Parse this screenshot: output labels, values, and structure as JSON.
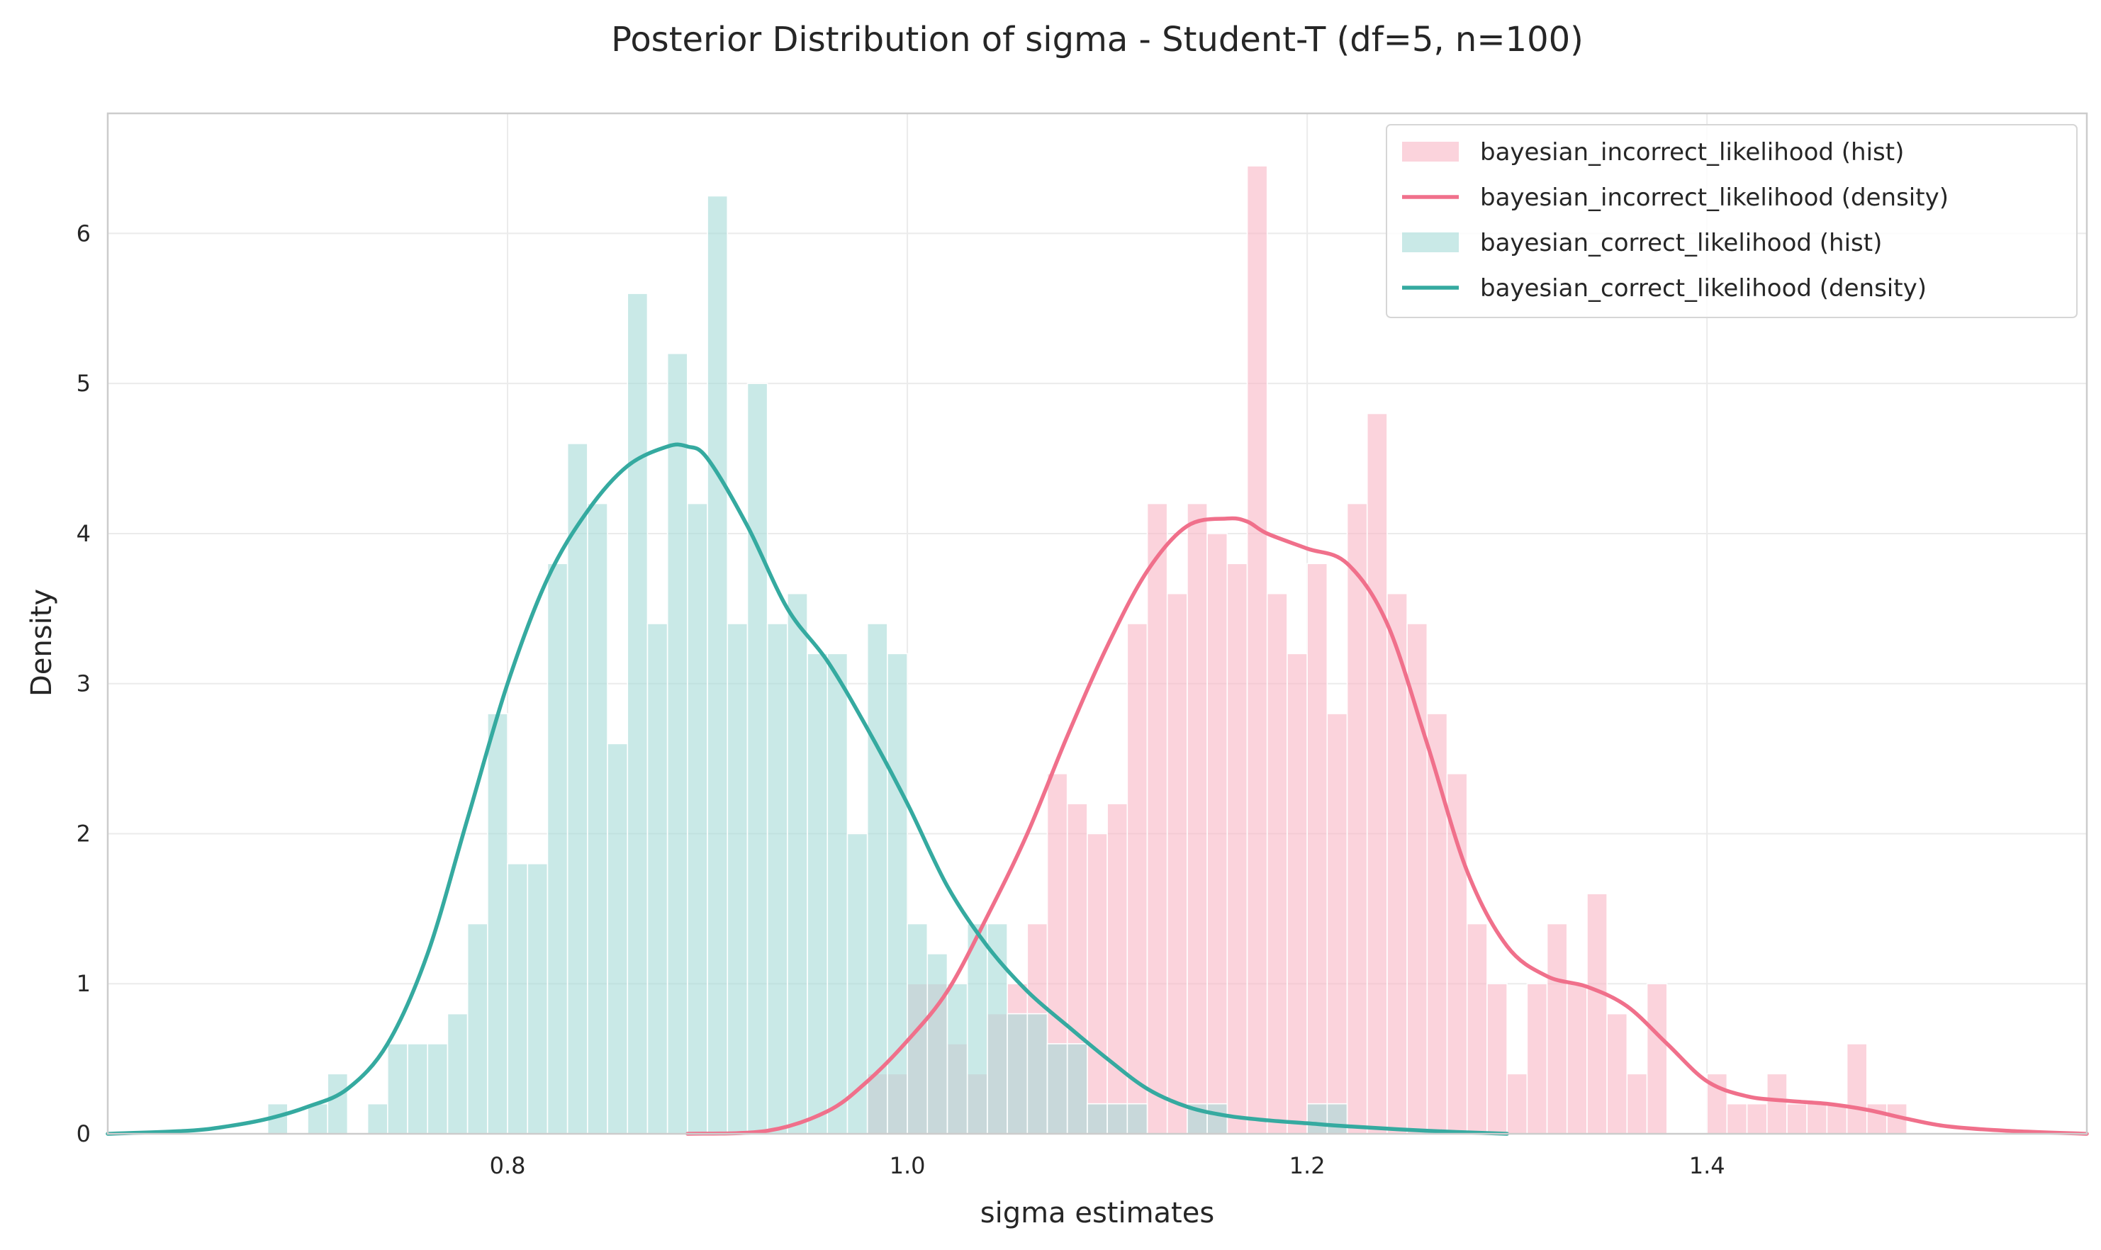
{
  "chart_data": {
    "type": "histogram",
    "title": "Posterior Distribution of sigma - Student-T (df=5, n=100)",
    "xlabel": "sigma estimates",
    "ylabel": "Density",
    "xlim": [
      0.6,
      1.59
    ],
    "ylim": [
      0,
      6.8
    ],
    "xticks": [
      0.8,
      1.0,
      1.2,
      1.4
    ],
    "xtick_labels": [
      "0.8",
      "1.0",
      "1.2",
      "1.4"
    ],
    "yticks": [
      0,
      1,
      2,
      3,
      4,
      5,
      6
    ],
    "ytick_labels": [
      "0",
      "1",
      "2",
      "3",
      "4",
      "5",
      "6"
    ],
    "grid": true,
    "legend_position": "top-right",
    "bin_width": 0.01,
    "series": [
      {
        "name": "bayesian_incorrect_likelihood (hist)",
        "kind": "hist",
        "color": "#f9b5c4",
        "bins": [
          [
            0.98,
            0.4
          ],
          [
            0.99,
            0.4
          ],
          [
            1.0,
            1.0
          ],
          [
            1.01,
            1.0
          ],
          [
            1.02,
            0.6
          ],
          [
            1.03,
            0.4
          ],
          [
            1.04,
            0.8
          ],
          [
            1.05,
            1.0
          ],
          [
            1.06,
            1.4
          ],
          [
            1.07,
            2.4
          ],
          [
            1.08,
            2.2
          ],
          [
            1.09,
            2.0
          ],
          [
            1.1,
            2.2
          ],
          [
            1.11,
            3.4
          ],
          [
            1.12,
            4.2
          ],
          [
            1.13,
            3.6
          ],
          [
            1.14,
            4.2
          ],
          [
            1.15,
            4.0
          ],
          [
            1.16,
            3.8
          ],
          [
            1.17,
            6.45
          ],
          [
            1.18,
            3.6
          ],
          [
            1.19,
            3.2
          ],
          [
            1.2,
            3.8
          ],
          [
            1.21,
            2.8
          ],
          [
            1.22,
            4.2
          ],
          [
            1.23,
            4.8
          ],
          [
            1.24,
            3.6
          ],
          [
            1.25,
            3.4
          ],
          [
            1.26,
            2.8
          ],
          [
            1.27,
            2.4
          ],
          [
            1.28,
            1.4
          ],
          [
            1.29,
            1.0
          ],
          [
            1.3,
            0.4
          ],
          [
            1.31,
            1.0
          ],
          [
            1.32,
            1.4
          ],
          [
            1.33,
            1.0
          ],
          [
            1.34,
            1.6
          ],
          [
            1.35,
            0.8
          ],
          [
            1.36,
            0.4
          ],
          [
            1.37,
            1.0
          ],
          [
            1.38,
            0.0
          ],
          [
            1.39,
            0.0
          ],
          [
            1.4,
            0.4
          ],
          [
            1.41,
            0.2
          ],
          [
            1.42,
            0.2
          ],
          [
            1.43,
            0.4
          ],
          [
            1.44,
            0.2
          ],
          [
            1.45,
            0.2
          ],
          [
            1.46,
            0.2
          ],
          [
            1.47,
            0.6
          ],
          [
            1.48,
            0.2
          ],
          [
            1.49,
            0.2
          ]
        ]
      },
      {
        "name": "bayesian_incorrect_likelihood (density)",
        "kind": "line",
        "color": "#f0708b",
        "x": [
          0.89,
          0.93,
          0.96,
          0.98,
          1.0,
          1.02,
          1.04,
          1.06,
          1.08,
          1.1,
          1.12,
          1.14,
          1.16,
          1.17,
          1.18,
          1.2,
          1.22,
          1.24,
          1.26,
          1.28,
          1.3,
          1.32,
          1.34,
          1.36,
          1.38,
          1.4,
          1.42,
          1.44,
          1.46,
          1.48,
          1.5,
          1.52,
          1.55,
          1.59
        ],
        "y": [
          0.0,
          0.02,
          0.15,
          0.35,
          0.62,
          0.95,
          1.45,
          2.0,
          2.65,
          3.25,
          3.75,
          4.05,
          4.1,
          4.08,
          4.0,
          3.9,
          3.8,
          3.4,
          2.6,
          1.75,
          1.25,
          1.05,
          0.98,
          0.85,
          0.6,
          0.35,
          0.25,
          0.22,
          0.2,
          0.16,
          0.1,
          0.05,
          0.02,
          0.0
        ]
      },
      {
        "name": "bayesian_correct_likelihood (hist)",
        "kind": "hist",
        "color": "#a8dbd9",
        "bins": [
          [
            0.68,
            0.2
          ],
          [
            0.69,
            0.0
          ],
          [
            0.7,
            0.2
          ],
          [
            0.71,
            0.4
          ],
          [
            0.72,
            0.0
          ],
          [
            0.73,
            0.2
          ],
          [
            0.74,
            0.6
          ],
          [
            0.75,
            0.6
          ],
          [
            0.76,
            0.6
          ],
          [
            0.77,
            0.8
          ],
          [
            0.78,
            1.4
          ],
          [
            0.79,
            2.8
          ],
          [
            0.8,
            1.8
          ],
          [
            0.81,
            1.8
          ],
          [
            0.82,
            3.8
          ],
          [
            0.83,
            4.6
          ],
          [
            0.84,
            4.2
          ],
          [
            0.85,
            2.6
          ],
          [
            0.86,
            5.6
          ],
          [
            0.87,
            3.4
          ],
          [
            0.88,
            5.2
          ],
          [
            0.89,
            4.2
          ],
          [
            0.9,
            6.25
          ],
          [
            0.91,
            3.4
          ],
          [
            0.92,
            5.0
          ],
          [
            0.93,
            3.4
          ],
          [
            0.94,
            3.6
          ],
          [
            0.95,
            3.2
          ],
          [
            0.96,
            3.2
          ],
          [
            0.97,
            2.0
          ],
          [
            0.98,
            3.4
          ],
          [
            0.99,
            3.2
          ],
          [
            1.0,
            1.4
          ],
          [
            1.01,
            1.2
          ],
          [
            1.02,
            1.0
          ],
          [
            1.03,
            1.4
          ],
          [
            1.04,
            1.4
          ],
          [
            1.05,
            0.8
          ],
          [
            1.06,
            0.8
          ],
          [
            1.07,
            0.6
          ],
          [
            1.08,
            0.6
          ],
          [
            1.09,
            0.2
          ],
          [
            1.1,
            0.2
          ],
          [
            1.11,
            0.2
          ],
          [
            1.12,
            0.0
          ],
          [
            1.13,
            0.0
          ],
          [
            1.14,
            0.2
          ],
          [
            1.15,
            0.2
          ],
          [
            1.16,
            0.0
          ],
          [
            1.17,
            0.0
          ],
          [
            1.18,
            0.0
          ],
          [
            1.19,
            0.0
          ],
          [
            1.2,
            0.2
          ],
          [
            1.21,
            0.2
          ]
        ]
      },
      {
        "name": "bayesian_correct_likelihood (density)",
        "kind": "line",
        "color": "#35aaa0",
        "x": [
          0.6,
          0.64,
          0.66,
          0.68,
          0.7,
          0.72,
          0.74,
          0.76,
          0.78,
          0.8,
          0.82,
          0.84,
          0.86,
          0.88,
          0.89,
          0.9,
          0.92,
          0.94,
          0.96,
          0.98,
          1.0,
          1.02,
          1.04,
          1.06,
          1.08,
          1.1,
          1.12,
          1.14,
          1.16,
          1.18,
          1.2,
          1.22,
          1.26,
          1.3
        ],
        "y": [
          0.0,
          0.02,
          0.05,
          0.1,
          0.18,
          0.3,
          0.6,
          1.2,
          2.1,
          3.0,
          3.7,
          4.15,
          4.45,
          4.58,
          4.58,
          4.5,
          4.05,
          3.5,
          3.15,
          2.7,
          2.2,
          1.65,
          1.25,
          0.95,
          0.72,
          0.5,
          0.3,
          0.18,
          0.12,
          0.09,
          0.07,
          0.05,
          0.02,
          0.0
        ]
      }
    ]
  }
}
